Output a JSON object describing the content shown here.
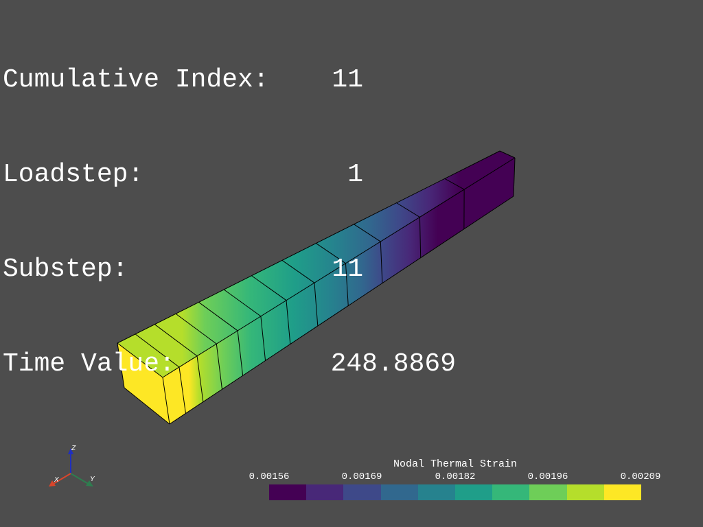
{
  "info": {
    "cumulative_label": "Cumulative Index:",
    "cumulative_value": "11",
    "loadstep_label": "Loadstep:",
    "loadstep_value": "1",
    "substep_label": "Substep:",
    "substep_value": "11",
    "time_label": "Time Value:",
    "time_value": "248.8869"
  },
  "colorbar": {
    "title": "Nodal Thermal Strain",
    "ticks": [
      "0.00156",
      "0.00169",
      "0.00182",
      "0.00196",
      "0.00209"
    ],
    "colors": [
      "#440154",
      "#482878",
      "#3e4989",
      "#31688e",
      "#26828e",
      "#1f9e89",
      "#35b779",
      "#6ece58",
      "#b5de2b",
      "#fde725"
    ]
  },
  "axes": {
    "x": "X",
    "y": "Y",
    "z": "Z"
  },
  "model": {
    "element_count": 12,
    "colors": {
      "edge": "#000000",
      "x_axis": "#d9452b",
      "y_axis": "#2e7d4f",
      "z_axis": "#1f2fbf"
    }
  }
}
